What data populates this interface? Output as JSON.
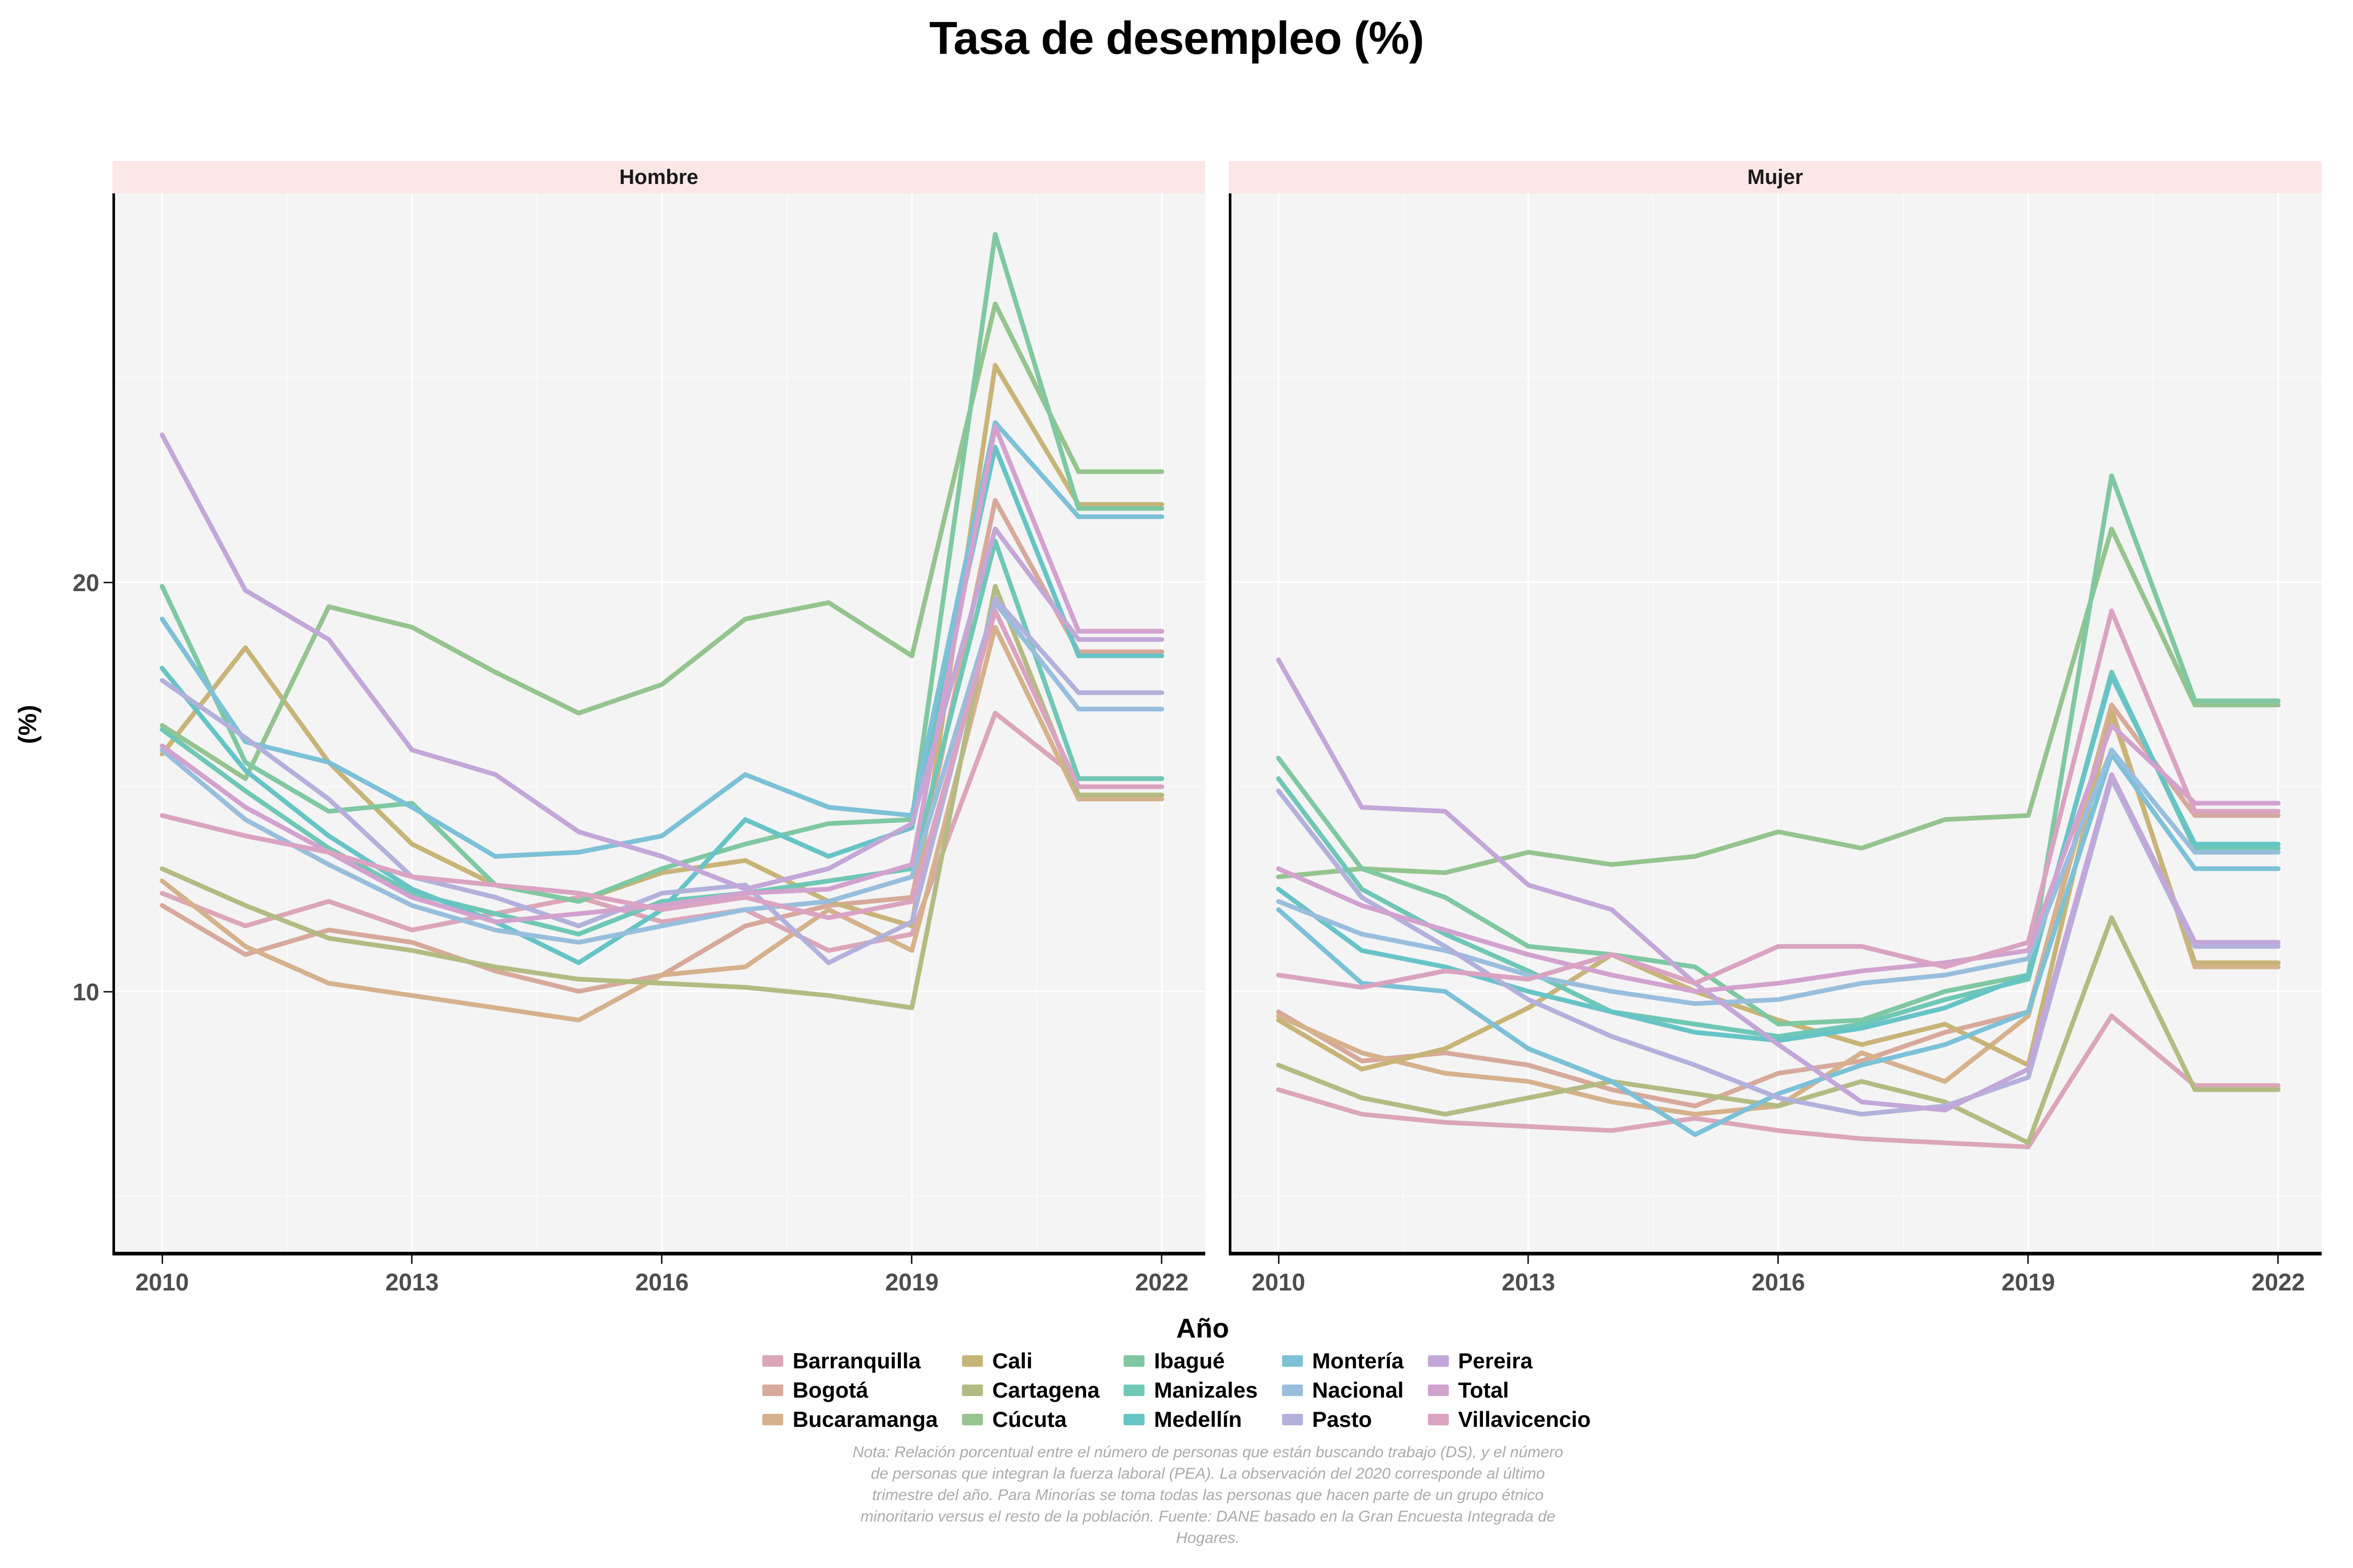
{
  "title": "Tasa de desempleo (%)",
  "y_axis": {
    "label": "(%)",
    "ticks": [
      10,
      20
    ]
  },
  "x_axis": {
    "label": "Año",
    "ticks": [
      2010,
      2013,
      2016,
      2019,
      2022
    ]
  },
  "note": {
    "lines": [
      "Nota: Relación porcentual entre el número de personas que están buscando trabajo (DS), y el número",
      "de personas que integran la fuerza laboral (PEA). La observación del 2020 corresponde al último",
      "trimestre del año. Para Minorías se toma todas las personas que hacen parte de un grupo étnico",
      "minoritario versus el resto de la población. Fuente: DANE basado en la Gran Encuesta Integrada de",
      "Hogares."
    ]
  },
  "style": {
    "strip_bg": "#fae7e6",
    "panel_bg": "#f4f4f4",
    "grid_major": "#ffffff",
    "grid_minor": "#fafafa",
    "axis_line": "#000000",
    "tick_label_color": "#4d4d4d",
    "note_color": "#ababab"
  },
  "chart_data": {
    "type": "line",
    "title": "Tasa de desempleo (%)",
    "xlabel": "Año",
    "ylabel": "(%)",
    "ylim": [
      3.6,
      29.5
    ],
    "grid": true,
    "legend_position": "bottom",
    "x": [
      2010,
      2011,
      2012,
      2013,
      2014,
      2015,
      2016,
      2017,
      2018,
      2019,
      2020,
      2021,
      2022
    ],
    "series_names": [
      "Barranquilla",
      "Bogotá",
      "Bucaramanga",
      "Cali",
      "Cartagena",
      "Cúcuta",
      "Ibagué",
      "Manizales",
      "Medellín",
      "Montería",
      "Nacional",
      "Pasto",
      "Pereira",
      "Total",
      "Villavicencio"
    ],
    "colors": {
      "Barranquilla": "#dba6b8",
      "Bogotá": "#d7a99b",
      "Bucaramanga": "#d5b18c",
      "Cali": "#c8b478",
      "Cartagena": "#b3bb82",
      "Cúcuta": "#95c48f",
      "Ibagué": "#7fc8a1",
      "Manizales": "#6fc7b6",
      "Medellín": "#67c4c6",
      "Montería": "#7cc1d7",
      "Nacional": "#99bedd",
      "Pasto": "#b2b1dc",
      "Pereira": "#c3a7d8",
      "Total": "#d2a2cf",
      "Villavicencio": "#daa3c2"
    },
    "facets": [
      {
        "name": "Hombre",
        "series": {
          "Barranquilla": [
            12.4,
            11.6,
            12.2,
            11.5,
            11.9,
            12.3,
            11.7,
            12.0,
            11.0,
            11.4,
            16.8,
            15.2,
            15.2
          ],
          "Bogotá": [
            12.1,
            10.9,
            11.5,
            11.2,
            10.5,
            10.0,
            10.4,
            11.6,
            12.1,
            12.3,
            22.0,
            18.3,
            18.3
          ],
          "Bucaramanga": [
            12.7,
            11.1,
            10.2,
            9.9,
            9.6,
            9.3,
            10.4,
            10.6,
            12.0,
            11.0,
            18.9,
            14.7,
            14.7
          ],
          "Cali": [
            15.8,
            18.4,
            15.6,
            13.6,
            12.6,
            12.2,
            12.9,
            13.2,
            12.2,
            11.6,
            25.3,
            21.9,
            21.9
          ],
          "Cartagena": [
            13.0,
            12.1,
            11.3,
            11.0,
            10.6,
            10.3,
            10.2,
            10.1,
            9.9,
            9.6,
            19.9,
            14.8,
            14.8
          ],
          "Cúcuta": [
            16.5,
            15.2,
            19.4,
            18.9,
            17.8,
            16.8,
            17.5,
            19.1,
            19.5,
            18.2,
            26.8,
            22.7,
            22.7
          ],
          "Ibagué": [
            19.9,
            15.6,
            14.4,
            14.6,
            12.6,
            12.2,
            13.0,
            13.6,
            14.1,
            14.2,
            28.5,
            21.8,
            21.8
          ],
          "Manizales": [
            16.4,
            14.9,
            13.5,
            12.4,
            11.9,
            11.4,
            12.2,
            12.4,
            12.7,
            13.0,
            21.0,
            15.2,
            15.2
          ],
          "Medellín": [
            17.9,
            15.4,
            13.8,
            12.5,
            11.7,
            10.7,
            12.0,
            14.2,
            13.3,
            14.0,
            23.3,
            18.2,
            18.2
          ],
          "Montería": [
            19.1,
            16.1,
            15.6,
            14.5,
            13.3,
            13.4,
            13.8,
            15.3,
            14.5,
            14.3,
            23.9,
            21.6,
            21.6
          ],
          "Nacional": [
            15.9,
            14.2,
            13.1,
            12.1,
            11.5,
            11.2,
            11.6,
            12.0,
            12.2,
            12.8,
            19.5,
            16.9,
            16.9
          ],
          "Pasto": [
            17.6,
            16.2,
            14.7,
            12.8,
            12.3,
            11.6,
            12.4,
            12.6,
            10.7,
            11.7,
            19.6,
            17.3,
            17.3
          ],
          "Pereira": [
            23.6,
            19.8,
            18.6,
            15.9,
            15.3,
            13.9,
            13.3,
            12.5,
            13.0,
            14.1,
            21.3,
            18.6,
            18.6
          ],
          "Total": [
            16.0,
            14.5,
            13.4,
            12.3,
            11.7,
            11.9,
            12.1,
            12.4,
            12.5,
            13.1,
            23.8,
            18.8,
            18.8
          ],
          "Villavicencio": [
            14.3,
            13.8,
            13.4,
            12.8,
            12.6,
            12.4,
            12.0,
            12.3,
            11.8,
            12.2,
            19.3,
            15.0,
            15.0
          ]
        }
      },
      {
        "name": "Mujer",
        "series": {
          "Barranquilla": [
            7.6,
            7.0,
            6.8,
            6.7,
            6.6,
            6.9,
            6.6,
            6.4,
            6.3,
            6.2,
            9.4,
            7.7,
            7.7
          ],
          "Bogotá": [
            9.5,
            8.3,
            8.5,
            8.2,
            7.6,
            7.2,
            8.0,
            8.3,
            9.0,
            9.5,
            17.0,
            14.3,
            14.3
          ],
          "Bucaramanga": [
            9.4,
            8.5,
            8.0,
            7.8,
            7.3,
            7.0,
            7.2,
            8.5,
            7.8,
            9.4,
            16.9,
            10.6,
            10.6
          ],
          "Cali": [
            9.3,
            8.1,
            8.6,
            9.6,
            10.9,
            10.0,
            9.3,
            8.7,
            9.2,
            8.2,
            16.8,
            10.7,
            10.7
          ],
          "Cartagena": [
            8.2,
            7.4,
            7.0,
            7.4,
            7.8,
            7.5,
            7.2,
            7.8,
            7.3,
            6.3,
            11.8,
            7.6,
            7.6
          ],
          "Cúcuta": [
            12.8,
            13.0,
            12.9,
            13.4,
            13.1,
            13.3,
            13.9,
            13.5,
            14.2,
            14.3,
            21.3,
            17.0,
            17.0
          ],
          "Ibagué": [
            15.7,
            13.0,
            12.3,
            11.1,
            10.9,
            10.6,
            9.2,
            9.3,
            10.0,
            10.4,
            22.6,
            17.1,
            17.1
          ],
          "Manizales": [
            15.2,
            12.5,
            11.4,
            10.5,
            9.5,
            9.2,
            8.9,
            9.2,
            9.8,
            10.3,
            17.8,
            13.5,
            13.5
          ],
          "Medellín": [
            12.5,
            11.0,
            10.6,
            10.0,
            9.5,
            9.0,
            8.8,
            9.1,
            9.6,
            10.4,
            17.7,
            13.6,
            13.6
          ],
          "Montería": [
            12.0,
            10.2,
            10.0,
            8.6,
            7.8,
            6.5,
            7.5,
            8.2,
            8.7,
            9.5,
            15.8,
            13.0,
            13.0
          ],
          "Nacional": [
            12.2,
            11.4,
            11.0,
            10.4,
            10.0,
            9.7,
            9.8,
            10.2,
            10.4,
            10.8,
            15.9,
            13.4,
            13.4
          ],
          "Pasto": [
            14.9,
            12.3,
            11.1,
            9.8,
            8.9,
            8.2,
            7.4,
            7.0,
            7.2,
            7.9,
            15.2,
            11.1,
            11.1
          ],
          "Pereira": [
            18.1,
            14.5,
            14.4,
            12.6,
            12.0,
            10.2,
            8.7,
            7.3,
            7.1,
            8.1,
            15.3,
            11.2,
            11.2
          ],
          "Total": [
            13.0,
            12.1,
            11.5,
            10.9,
            10.4,
            10.0,
            10.2,
            10.5,
            10.7,
            11.0,
            16.5,
            14.6,
            14.6
          ],
          "Villavicencio": [
            10.4,
            10.1,
            10.5,
            10.3,
            10.9,
            10.2,
            11.1,
            11.1,
            10.6,
            11.2,
            19.3,
            14.4,
            14.4
          ]
        }
      }
    ]
  }
}
